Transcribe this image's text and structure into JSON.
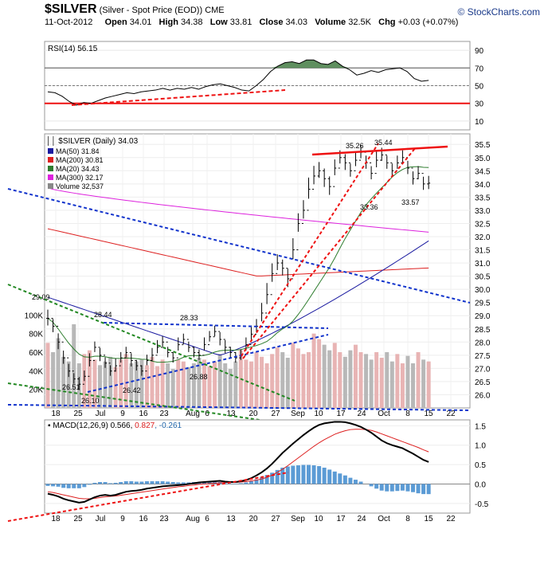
{
  "header": {
    "symbol": "$SILVER",
    "name": "(Silver - Spot Price (EOD))",
    "exchange": "CME",
    "brand": "© StockCharts.com",
    "date": "11-Oct-2012",
    "open_label": "Open",
    "open": "34.01",
    "high_label": "High",
    "high": "34.38",
    "low_label": "Low",
    "low": "33.81",
    "close_label": "Close",
    "close": "34.03",
    "volume_label": "Volume",
    "volume": "32.5K",
    "chg_label": "Chg",
    "chg": "+0.03 (+0.07%)"
  },
  "colors": {
    "price": "#000000",
    "ma50": "#1a1aa0",
    "ma200": "#dd2020",
    "ma20": "#2e7d2e",
    "ma300": "#dd22dd",
    "volume_up": "#e8b4b4",
    "volume_down": "#b8b8b8",
    "trend_red": "#ee1111",
    "trend_blue": "#1133cc",
    "trend_green": "#228822",
    "rsi_fill": "#5f8f5f",
    "macd_hist": "#5b9bd5"
  },
  "chart_data": [
    {
      "type": "line",
      "panel": "rsi",
      "legend": "RSI(14) 56.15",
      "ylim": [
        0,
        100
      ],
      "ticks": [
        10,
        30,
        50,
        70,
        90
      ],
      "reference_lines": [
        30,
        50,
        70
      ],
      "values": [
        43,
        42,
        38,
        32,
        28,
        31,
        30,
        33,
        36,
        38,
        40,
        42,
        41,
        43,
        44,
        45,
        47,
        45,
        47,
        46,
        48,
        46,
        49,
        51,
        52,
        50,
        48,
        45,
        44,
        50,
        57,
        66,
        72,
        76,
        77,
        75,
        79,
        79,
        75,
        74,
        78,
        72,
        68,
        62,
        64,
        67,
        65,
        68,
        69,
        70,
        66,
        58,
        55,
        56
      ]
    },
    {
      "type": "ohlc",
      "panel": "price",
      "title": "$SILVER (Daily) 34.03",
      "legend": [
        {
          "name": "MA(50) 31.84",
          "color": "#1a1aa0"
        },
        {
          "name": "MA(200) 30.81",
          "color": "#dd2020"
        },
        {
          "name": "MA(20) 34.43",
          "color": "#2e7d2e"
        },
        {
          "name": "MA(300) 32.17",
          "color": "#dd22dd"
        },
        {
          "name": "Volume 32,537",
          "color": "#888888"
        }
      ],
      "ylim": [
        25.5,
        35.9
      ],
      "price_ticks": [
        "26.0",
        "26.5",
        "27.0",
        "27.5",
        "28.0",
        "28.5",
        "29.0",
        "29.5",
        "30.0",
        "30.5",
        "31.0",
        "31.5",
        "32.0",
        "32.5",
        "33.0",
        "33.5",
        "34.0",
        "34.5",
        "35.0",
        "35.5"
      ],
      "volume_ticks": [
        "20K",
        "40K",
        "60K",
        "80K",
        "100K"
      ],
      "x_labels": [
        "18",
        "25",
        "Jul",
        "9",
        "16",
        "23",
        "Aug",
        "6",
        "13",
        "20",
        "27",
        "Sep",
        "10",
        "17",
        "24",
        "Oct",
        "8",
        "15",
        "22"
      ],
      "close": [
        28.9,
        28.6,
        28.0,
        27.4,
        26.9,
        26.6,
        26.4,
        26.7,
        27.3,
        27.8,
        27.5,
        27.2,
        26.9,
        27.1,
        27.4,
        27.6,
        27.3,
        27.1,
        26.9,
        27.3,
        27.5,
        27.8,
        28.0,
        27.6,
        27.4,
        27.9,
        28.1,
        27.8,
        27.6,
        27.5,
        27.9,
        28.2,
        28.4,
        28.1,
        27.8,
        27.6,
        27.4,
        27.5,
        27.9,
        28.3,
        28.6,
        29.1,
        29.8,
        30.6,
        31.0,
        30.8,
        30.4,
        31.5,
        32.5,
        33.0,
        33.8,
        34.3,
        34.5,
        34.2,
        33.9,
        34.6,
        35.0,
        34.8,
        34.5,
        34.9,
        35.2,
        34.8,
        34.4,
        34.9,
        35.1,
        34.8,
        34.5,
        34.8,
        35.0,
        34.6,
        34.2,
        34.4,
        34.0,
        34.03
      ],
      "ranges": [
        0.6,
        0.5,
        0.6,
        0.5,
        0.5,
        0.4,
        0.5,
        0.4,
        0.5,
        0.4,
        0.5,
        0.4,
        0.4,
        0.5,
        0.4,
        0.4,
        0.5,
        0.4,
        0.4,
        0.4,
        0.5,
        0.5,
        0.4,
        0.4,
        0.4,
        0.5,
        0.4,
        0.4,
        0.4,
        0.4,
        0.5,
        0.4,
        0.4,
        0.5,
        0.5,
        0.4,
        0.4,
        0.4,
        0.5,
        0.6,
        0.5,
        0.7,
        0.8,
        0.7,
        0.6,
        0.6,
        0.7,
        0.8,
        0.7,
        0.7,
        0.8,
        0.7,
        0.6,
        0.7,
        0.7,
        0.6,
        0.5,
        0.6,
        0.5,
        0.5,
        0.5,
        0.5,
        0.5,
        0.6,
        0.5,
        0.5,
        0.5,
        0.5,
        0.5,
        0.5,
        0.5,
        0.5,
        0.5,
        0.5
      ],
      "volume": [
        70,
        60,
        75,
        55,
        50,
        90,
        48,
        58,
        62,
        52,
        46,
        50,
        55,
        44,
        52,
        58,
        48,
        50,
        52,
        46,
        55,
        45,
        52,
        48,
        42,
        52,
        50,
        44,
        48,
        54,
        52,
        45,
        50,
        58,
        48,
        42,
        50,
        62,
        52,
        50,
        60,
        55,
        48,
        58,
        65,
        60,
        54,
        70,
        64,
        58,
        60,
        80,
        74,
        68,
        62,
        70,
        60,
        55,
        62,
        68,
        60,
        58,
        52,
        60,
        54,
        60,
        50,
        58,
        48,
        56,
        48,
        60,
        52,
        50
      ],
      "volume_direction": "alternating",
      "annotations": [
        "29.09",
        "28.44",
        "26.51",
        "26.10",
        "26.42",
        "28.33",
        "26.88",
        "35.26",
        "35.44",
        "33.36",
        "33.57"
      ]
    },
    {
      "type": "line",
      "panel": "macd",
      "legend_name": "MACD(12,26,9)",
      "legend_macd": "0.566",
      "legend_signal": "0.827",
      "legend_hist": "-0.261",
      "ylim": [
        -0.75,
        1.65
      ],
      "ticks": [
        "-0.5",
        "0.0",
        "0.5",
        "1.0",
        "1.5"
      ],
      "macd": [
        -0.25,
        -0.28,
        -0.32,
        -0.38,
        -0.42,
        -0.45,
        -0.48,
        -0.46,
        -0.4,
        -0.34,
        -0.3,
        -0.28,
        -0.3,
        -0.28,
        -0.24,
        -0.2,
        -0.18,
        -0.17,
        -0.15,
        -0.12,
        -0.1,
        -0.08,
        -0.06,
        -0.05,
        -0.04,
        -0.03,
        -0.02,
        0.0,
        0.02,
        0.04,
        0.05,
        0.06,
        0.07,
        0.08,
        0.06,
        0.05,
        0.05,
        0.07,
        0.1,
        0.15,
        0.22,
        0.3,
        0.4,
        0.52,
        0.66,
        0.8,
        0.92,
        1.04,
        1.15,
        1.26,
        1.36,
        1.45,
        1.52,
        1.56,
        1.58,
        1.6,
        1.6,
        1.59,
        1.56,
        1.52,
        1.47,
        1.4,
        1.32,
        1.22,
        1.12,
        1.05,
        1.0,
        0.96,
        0.92,
        0.85,
        0.78,
        0.7,
        0.62,
        0.566
      ],
      "signal": [
        -0.2,
        -0.22,
        -0.25,
        -0.28,
        -0.31,
        -0.34,
        -0.37,
        -0.38,
        -0.38,
        -0.37,
        -0.35,
        -0.33,
        -0.32,
        -0.31,
        -0.29,
        -0.27,
        -0.25,
        -0.23,
        -0.21,
        -0.19,
        -0.17,
        -0.15,
        -0.13,
        -0.11,
        -0.09,
        -0.07,
        -0.06,
        -0.04,
        -0.03,
        -0.01,
        0.0,
        0.01,
        0.02,
        0.03,
        0.04,
        0.04,
        0.04,
        0.05,
        0.06,
        0.08,
        0.1,
        0.13,
        0.17,
        0.23,
        0.3,
        0.38,
        0.47,
        0.57,
        0.67,
        0.77,
        0.87,
        0.97,
        1.06,
        1.14,
        1.21,
        1.28,
        1.33,
        1.37,
        1.4,
        1.41,
        1.41,
        1.4,
        1.38,
        1.34,
        1.29,
        1.24,
        1.19,
        1.14,
        1.09,
        1.04,
        0.99,
        0.94,
        0.88,
        0.827
      ]
    }
  ]
}
